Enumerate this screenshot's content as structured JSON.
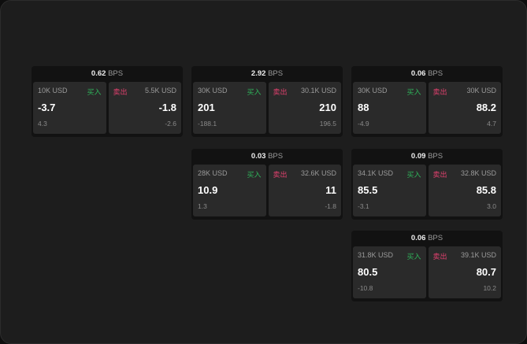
{
  "colors": {
    "buy": "#2fb35a",
    "sell": "#e0406e"
  },
  "unit": "BPS",
  "panels": [
    {
      "spread": "0.62",
      "buy": {
        "label": "买入",
        "amount": "10K USD",
        "price": "-3.7",
        "change": "4.3"
      },
      "sell": {
        "label": "卖出",
        "amount": "5.5K USD",
        "price": "-1.8",
        "change": "-2.6"
      }
    },
    {
      "spread": "2.92",
      "buy": {
        "label": "买入",
        "amount": "30K USD",
        "price": "201",
        "change": "-188.1"
      },
      "sell": {
        "label": "卖出",
        "amount": "30.1K USD",
        "price": "210",
        "change": "196.5"
      }
    },
    {
      "spread": "0.06",
      "buy": {
        "label": "买入",
        "amount": "30K USD",
        "price": "88",
        "change": "-4.9"
      },
      "sell": {
        "label": "卖出",
        "amount": "30K USD",
        "price": "88.2",
        "change": "4.7"
      }
    },
    {
      "spread": "0.03",
      "buy": {
        "label": "买入",
        "amount": "28K USD",
        "price": "10.9",
        "change": "1.3"
      },
      "sell": {
        "label": "卖出",
        "amount": "32.6K USD",
        "price": "11",
        "change": "-1.8"
      }
    },
    {
      "spread": "0.09",
      "buy": {
        "label": "买入",
        "amount": "34.1K USD",
        "price": "85.5",
        "change": "-3.1"
      },
      "sell": {
        "label": "卖出",
        "amount": "32.8K USD",
        "price": "85.8",
        "change": "3.0"
      }
    },
    {
      "spread": "0.06",
      "buy": {
        "label": "买入",
        "amount": "31.8K USD",
        "price": "80.5",
        "change": "-10.8"
      },
      "sell": {
        "label": "卖出",
        "amount": "39.1K USD",
        "price": "80.7",
        "change": "10.2"
      }
    }
  ]
}
